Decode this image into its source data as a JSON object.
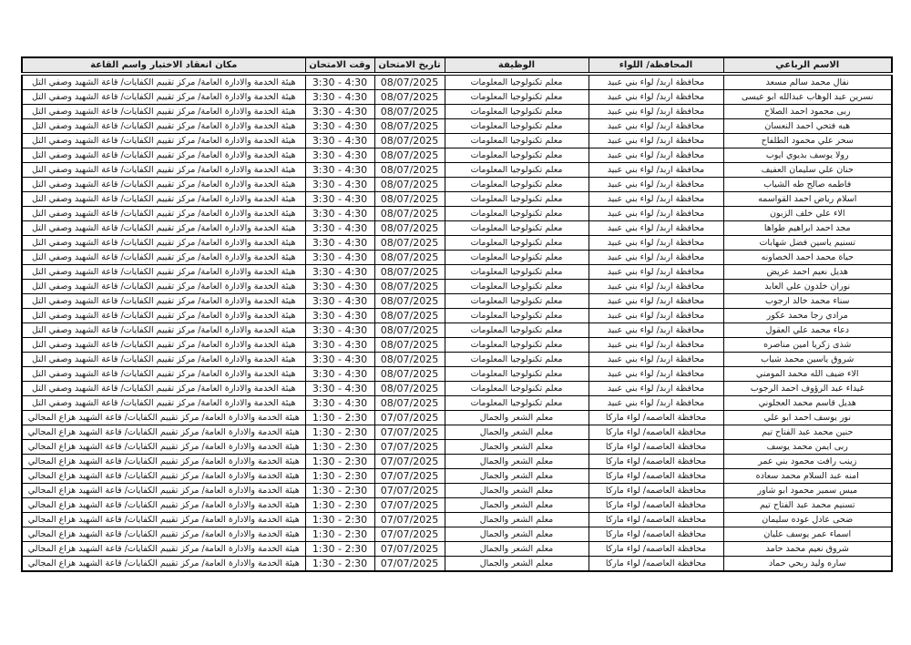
{
  "table": {
    "headers": [
      "الاسم الرباعي",
      "المحافظة/ اللواء",
      "الوظيفة",
      "تاريخ الامتحان",
      "وقت الامتحان",
      "مكان انعقاد الاختبار واسم القاعة"
    ],
    "header_bg": "#e8e8e8",
    "border_color": "#000000",
    "sections": [
      {
        "governorate": "محافظة اربد/ لواء بني عبيد",
        "job": "معلم تكنولوجيا المعلومات",
        "exam_date": "08/07/2025",
        "exam_time": "3:30 - 4:30",
        "location": "هيئة الخدمة والادارة العامة/ مركز تقييم الكفايات/ قاعة الشهيد وصفي التل",
        "names": [
          "نفال محمد سالم مسعد",
          "نسرين عبد الوهاب عبدالله ابو عيسى",
          "ربى محمود احمد الصلاح",
          "هبه فتحي احمد النعسان",
          "سحر علي محمود الطلفاح",
          "رولا يوسف بديوي ايوب",
          "حنان علي سليمان العفيف",
          "فاطمه صالح طه الشياب",
          "اسلام رياض احمد القواسمه",
          "الاء علي خلف الزبون",
          "مجد احمد ابراهيم طواها",
          "تسنيم ياسين فضل شهابات",
          "حياة محمد احمد الخصاونه",
          "هديل نعيم احمد عريض",
          "نوران خلدون علي العابد",
          "سناء محمد خالد ارجوب",
          "مرادي رجا محمد عكور",
          "دعاء محمد علي العقول",
          "شذى زكريا امين مناصره",
          "شروق ياسين محمد شياب",
          "الاء ضيف الله محمد المومني",
          "غيداء عبد الرؤوف احمد الرجوب",
          "هديل قاسم محمد العجلوني"
        ]
      },
      {
        "governorate": "محافظة العاصمه/ لواء ماركا",
        "job": "معلم الشعر والجمال",
        "exam_date": "07/07/2025",
        "exam_time": "1:30 - 2:30",
        "location": "هيئة الخدمة والادارة العامة/ مركز تقييم الكفايات/ قاعة الشهيد هزاع المجالي",
        "names": [
          "نور يوسف احمد ابو علي",
          "حنين محمد عبد الفتاح تيم",
          "ربى ايمن محمد يوسف",
          "زينب رافت محمود بني عمر",
          "امنه عبد السلام محمد سعاده",
          "ميس سمير محمود ابو شاور",
          "تسنيم محمد عبد الفتاح تيم",
          "ضحى عادل عوده سليمان",
          "اسماء عمر يوسف عليان",
          "شروق نعيم محمد حامد",
          "ساره وليد ربحي حماد"
        ]
      }
    ]
  }
}
